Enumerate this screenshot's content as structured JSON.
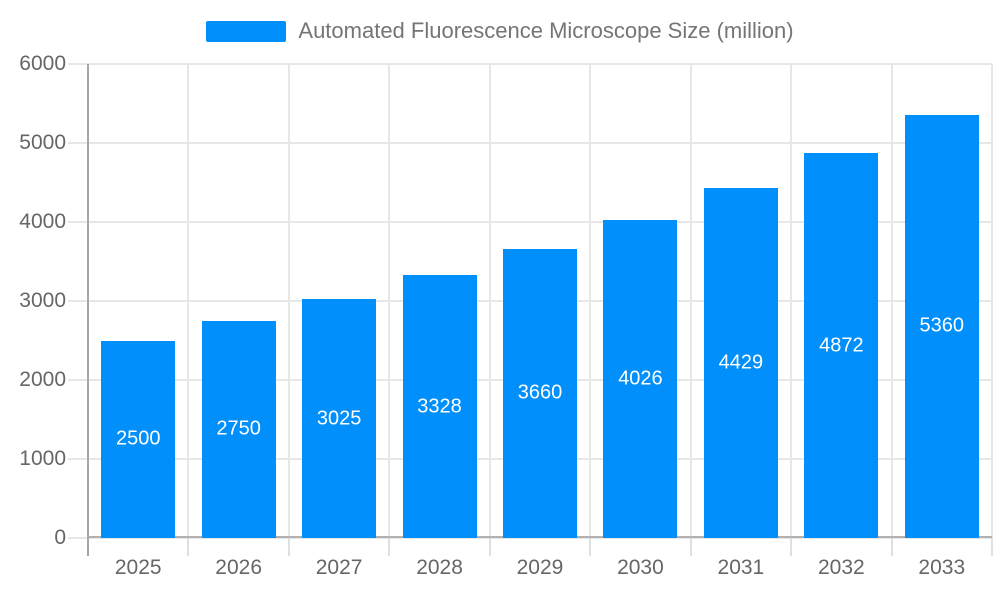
{
  "chart_data": {
    "type": "bar",
    "title": "Automated Fluorescence Microscope Size (million)",
    "categories": [
      "2025",
      "2026",
      "2027",
      "2028",
      "2029",
      "2030",
      "2031",
      "2032",
      "2033"
    ],
    "series": [
      {
        "name": "Automated Fluorescence Microscope Size (million)",
        "values": [
          2500,
          2750,
          3025,
          3328,
          3660,
          4026,
          4429,
          4872,
          5360
        ]
      }
    ],
    "xlabel": "",
    "ylabel": "",
    "ylim": [
      0,
      6000
    ],
    "yticks": [
      0,
      1000,
      2000,
      3000,
      4000,
      5000,
      6000
    ],
    "grid": true,
    "legend_position": "top",
    "colors": {
      "bar": "#008FFB",
      "grid": "#e7e7e7",
      "axis_line": "#a6a6a6",
      "xaxis_border": "#b1b1b1",
      "tick": "#e0e0e0",
      "axis_text": "#666666",
      "legend_text": "#757575",
      "value_label": "#ffffff",
      "background": "#ffffff"
    }
  }
}
